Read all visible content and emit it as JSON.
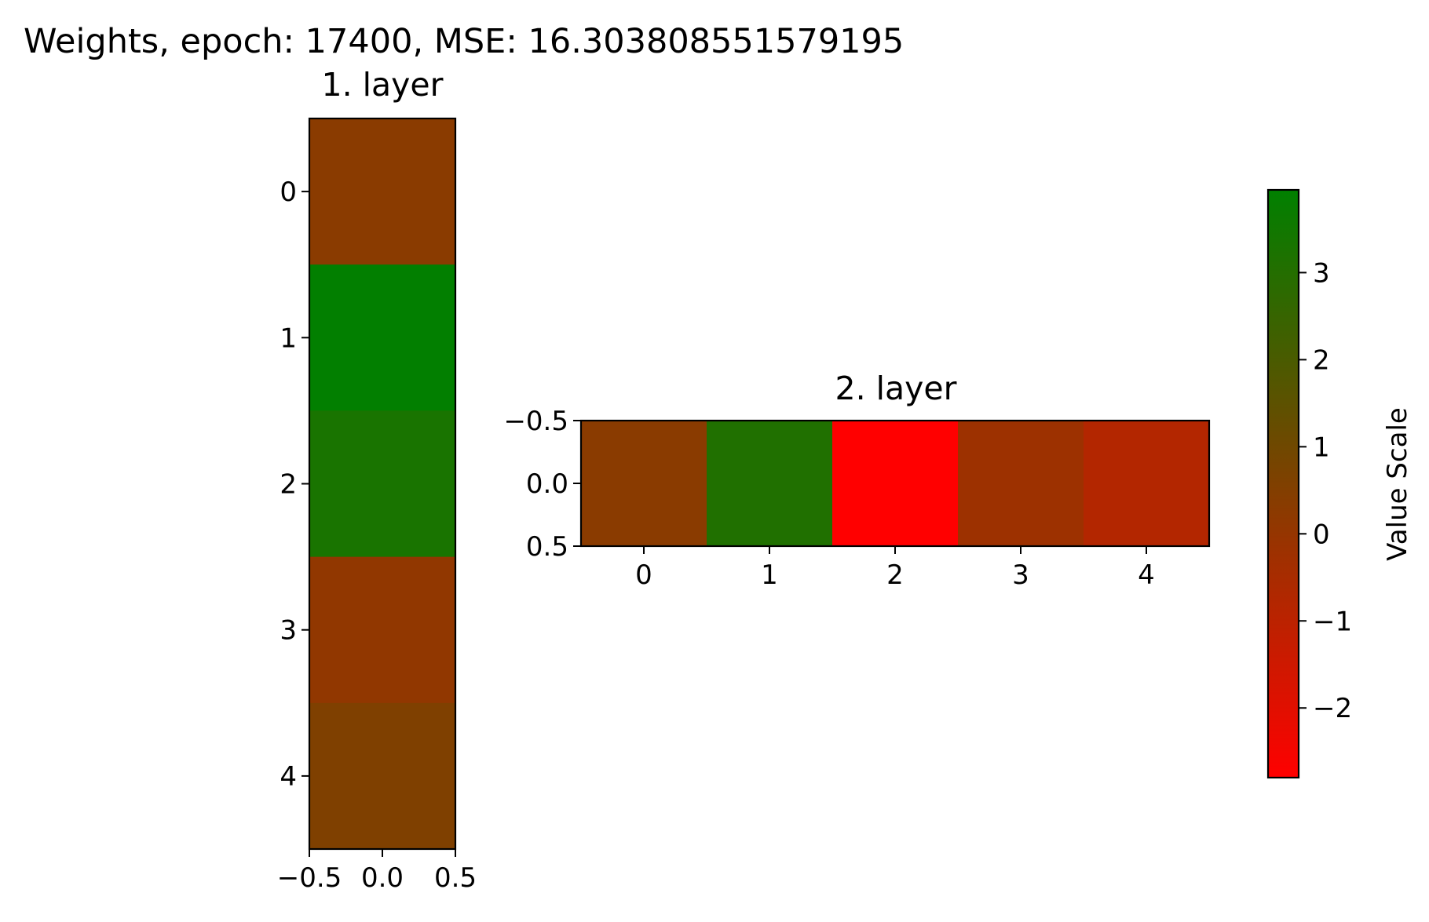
{
  "chart_data": {
    "type": "heatmap",
    "title": "Weights, epoch: 17400, MSE: 16.303808551579195",
    "panels": [
      {
        "title": "1. layer",
        "rows": 5,
        "cols": 1,
        "values": [
          [
            0.3
          ],
          [
            3.9
          ],
          [
            3.3
          ],
          [
            0.1
          ],
          [
            0.6
          ]
        ],
        "xticks": [
          "−0.5",
          "0.0",
          "0.5"
        ],
        "yticks": [
          "0",
          "1",
          "2",
          "3",
          "4"
        ]
      },
      {
        "title": "2. layer",
        "rows": 1,
        "cols": 5,
        "values": [
          [
            0.3,
            3.1,
            -2.8,
            -0.2,
            -0.8
          ]
        ],
        "xticks": [
          "0",
          "1",
          "2",
          "3",
          "4"
        ],
        "yticks": [
          "−0.5",
          "0.0",
          "0.5"
        ]
      }
    ],
    "colorbar": {
      "label": "Value Scale",
      "range": [
        -2.8,
        3.95
      ],
      "ticks": [
        {
          "value": 3,
          "label": "3"
        },
        {
          "value": 2,
          "label": "2"
        },
        {
          "value": 1,
          "label": "1"
        },
        {
          "value": 0,
          "label": "0"
        },
        {
          "value": -1,
          "label": "−1"
        },
        {
          "value": -2,
          "label": "−2"
        }
      ],
      "colors": [
        "#ff0000",
        "#008000"
      ]
    }
  }
}
